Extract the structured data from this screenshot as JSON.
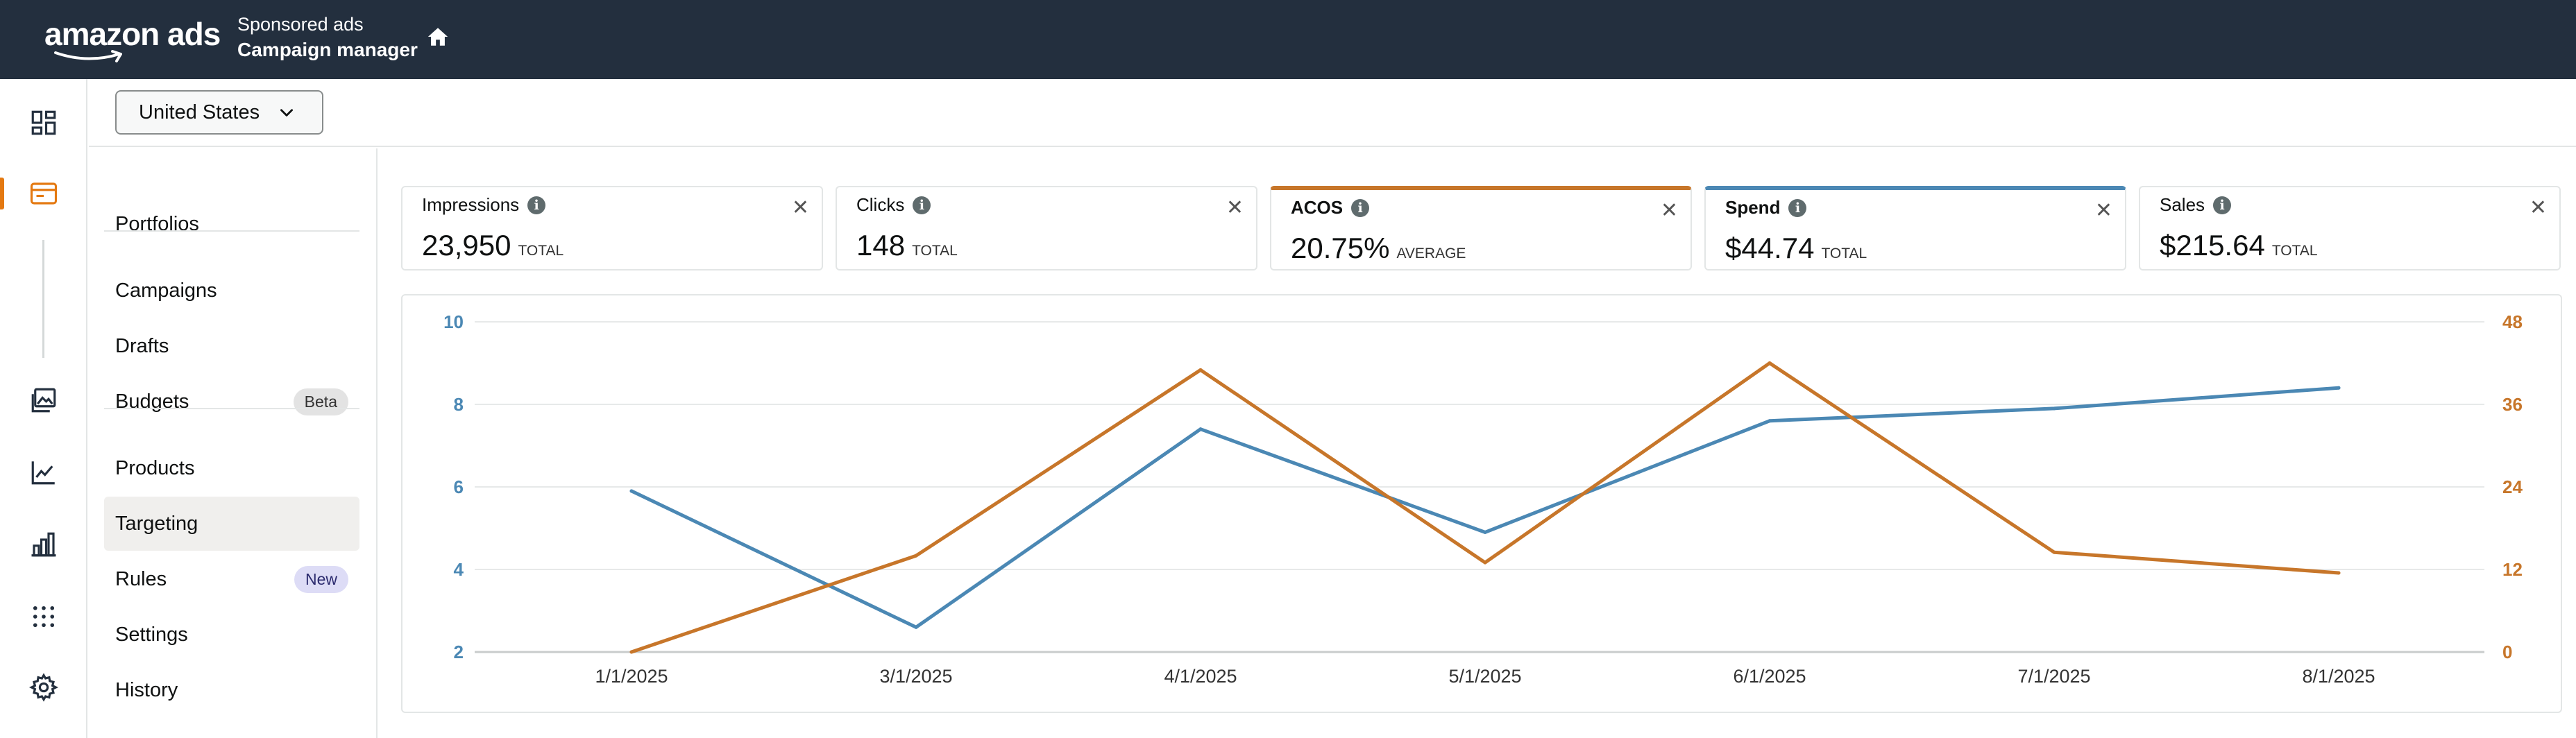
{
  "header": {
    "logo_text": "amazon ads",
    "breadcrumb_sub": "Sponsored ads",
    "breadcrumb_main": "Campaign manager",
    "home_icon": "home-icon"
  },
  "rail": {
    "icons": [
      "dashboard-icon",
      "campaign-card-icon",
      "creative-image-icon",
      "trend-chart-icon",
      "bar-chart-icon",
      "apps-grid-icon",
      "settings-gear-icon"
    ],
    "active_color": "#e47911"
  },
  "country_selector": {
    "value": "United States"
  },
  "nav": {
    "items": [
      {
        "label": "Portfolios"
      },
      {
        "label": "Campaigns"
      },
      {
        "label": "Drafts"
      },
      {
        "label": "Budgets",
        "badge": "Beta"
      },
      {
        "label": "Products"
      },
      {
        "label": "Targeting",
        "selected": true
      },
      {
        "label": "Rules",
        "badge": "New"
      },
      {
        "label": "Settings"
      },
      {
        "label": "History"
      }
    ]
  },
  "metrics": [
    {
      "title": "Impressions",
      "value": "23,950",
      "unit": "Total"
    },
    {
      "title": "Clicks",
      "value": "148",
      "unit": "Total"
    },
    {
      "title": "ACOS",
      "value": "20.75%",
      "unit": "Average",
      "accent": "#c7762a"
    },
    {
      "title": "Spend",
      "value": "$44.74",
      "unit": "Total",
      "accent": "#4b88b4"
    },
    {
      "title": "Sales",
      "value": "$215.64",
      "unit": "Total"
    }
  ],
  "chart_data": {
    "type": "line",
    "x": [
      "1/1/2025",
      "3/1/2025",
      "4/1/2025",
      "5/1/2025",
      "6/1/2025",
      "7/1/2025",
      "8/1/2025"
    ],
    "series": [
      {
        "color": "#4b88b4",
        "axis": "left",
        "values": [
          5.9,
          2.6,
          7.4,
          4.9,
          7.6,
          7.9,
          8.4
        ]
      },
      {
        "color": "#c7762a",
        "axis": "right",
        "values": [
          0,
          14,
          41,
          13,
          42,
          14.5,
          11.5
        ]
      }
    ],
    "y_left": {
      "ticks": [
        "10",
        "8",
        "6",
        "4",
        "2"
      ],
      "range": [
        2,
        10
      ],
      "color": "#4b88b4"
    },
    "y_right": {
      "ticks": [
        "48",
        "36",
        "24",
        "12",
        "0"
      ],
      "range": [
        0,
        48
      ],
      "color": "#c7762a"
    },
    "grid": true
  }
}
